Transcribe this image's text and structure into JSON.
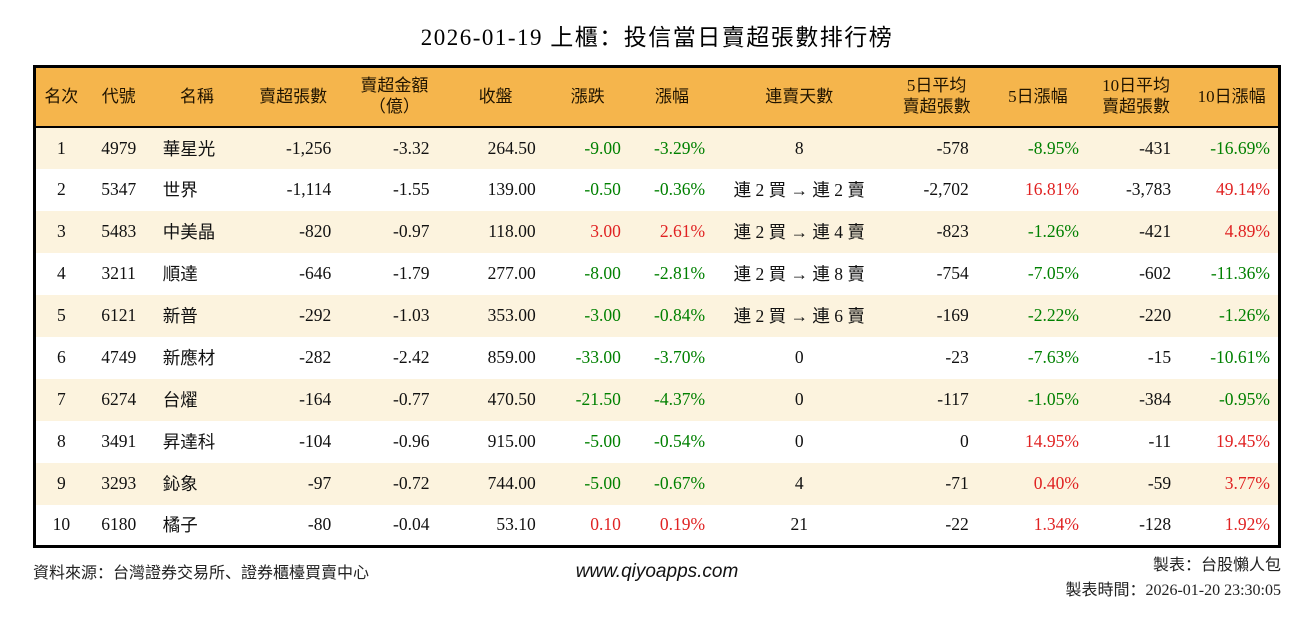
{
  "title": "2026-01-19 上櫃：投信當日賣超張數排行榜",
  "colors": {
    "header_bg": "#F5B54C",
    "row_alt_bg": "#FCF3DE",
    "row_bg": "#FFFFFF",
    "positive_red": "#E02222",
    "negative_green": "#008000",
    "border": "#000000",
    "text": "#111111"
  },
  "table": {
    "columns": [
      "名次",
      "代號",
      "名稱",
      "賣超張數",
      "賣超金額\n（億）",
      "收盤",
      "漲跌",
      "漲幅",
      "連賣天數",
      "5日平均\n賣超張數",
      "5日漲幅",
      "10日平均\n賣超張數",
      "10日漲幅"
    ],
    "rows": [
      [
        {
          "t": "1"
        },
        {
          "t": "4979"
        },
        {
          "t": "華星光"
        },
        {
          "t": "-1,256"
        },
        {
          "t": "-3.32"
        },
        {
          "t": "264.50"
        },
        {
          "t": "-9.00",
          "c": "dn"
        },
        {
          "t": "-3.29%",
          "c": "dn"
        },
        {
          "t": "8"
        },
        {
          "t": "-578"
        },
        {
          "t": "-8.95%",
          "c": "dn"
        },
        {
          "t": "-431"
        },
        {
          "t": "-16.69%",
          "c": "dn"
        }
      ],
      [
        {
          "t": "2"
        },
        {
          "t": "5347"
        },
        {
          "t": "世界"
        },
        {
          "t": "-1,114"
        },
        {
          "t": "-1.55"
        },
        {
          "t": "139.00"
        },
        {
          "t": "-0.50",
          "c": "dn"
        },
        {
          "t": "-0.36%",
          "c": "dn"
        },
        {
          "t": "連 2 買 → 連 2 賣"
        },
        {
          "t": "-2,702"
        },
        {
          "t": "16.81%",
          "c": "up"
        },
        {
          "t": "-3,783"
        },
        {
          "t": "49.14%",
          "c": "up"
        }
      ],
      [
        {
          "t": "3"
        },
        {
          "t": "5483"
        },
        {
          "t": "中美晶"
        },
        {
          "t": "-820"
        },
        {
          "t": "-0.97"
        },
        {
          "t": "118.00"
        },
        {
          "t": "3.00",
          "c": "up"
        },
        {
          "t": "2.61%",
          "c": "up"
        },
        {
          "t": "連 2 買 → 連 4 賣"
        },
        {
          "t": "-823"
        },
        {
          "t": "-1.26%",
          "c": "dn"
        },
        {
          "t": "-421"
        },
        {
          "t": "4.89%",
          "c": "up"
        }
      ],
      [
        {
          "t": "4"
        },
        {
          "t": "3211"
        },
        {
          "t": "順達"
        },
        {
          "t": "-646"
        },
        {
          "t": "-1.79"
        },
        {
          "t": "277.00"
        },
        {
          "t": "-8.00",
          "c": "dn"
        },
        {
          "t": "-2.81%",
          "c": "dn"
        },
        {
          "t": "連 2 買 → 連 8 賣"
        },
        {
          "t": "-754"
        },
        {
          "t": "-7.05%",
          "c": "dn"
        },
        {
          "t": "-602"
        },
        {
          "t": "-11.36%",
          "c": "dn"
        }
      ],
      [
        {
          "t": "5"
        },
        {
          "t": "6121"
        },
        {
          "t": "新普"
        },
        {
          "t": "-292"
        },
        {
          "t": "-1.03"
        },
        {
          "t": "353.00"
        },
        {
          "t": "-3.00",
          "c": "dn"
        },
        {
          "t": "-0.84%",
          "c": "dn"
        },
        {
          "t": "連 2 買 → 連 6 賣"
        },
        {
          "t": "-169"
        },
        {
          "t": "-2.22%",
          "c": "dn"
        },
        {
          "t": "-220"
        },
        {
          "t": "-1.26%",
          "c": "dn"
        }
      ],
      [
        {
          "t": "6"
        },
        {
          "t": "4749"
        },
        {
          "t": "新應材"
        },
        {
          "t": "-282"
        },
        {
          "t": "-2.42"
        },
        {
          "t": "859.00"
        },
        {
          "t": "-33.00",
          "c": "dn"
        },
        {
          "t": "-3.70%",
          "c": "dn"
        },
        {
          "t": "0"
        },
        {
          "t": "-23"
        },
        {
          "t": "-7.63%",
          "c": "dn"
        },
        {
          "t": "-15"
        },
        {
          "t": "-10.61%",
          "c": "dn"
        }
      ],
      [
        {
          "t": "7"
        },
        {
          "t": "6274"
        },
        {
          "t": "台燿"
        },
        {
          "t": "-164"
        },
        {
          "t": "-0.77"
        },
        {
          "t": "470.50"
        },
        {
          "t": "-21.50",
          "c": "dn"
        },
        {
          "t": "-4.37%",
          "c": "dn"
        },
        {
          "t": "0"
        },
        {
          "t": "-117"
        },
        {
          "t": "-1.05%",
          "c": "dn"
        },
        {
          "t": "-384"
        },
        {
          "t": "-0.95%",
          "c": "dn"
        }
      ],
      [
        {
          "t": "8"
        },
        {
          "t": "3491"
        },
        {
          "t": "昇達科"
        },
        {
          "t": "-104"
        },
        {
          "t": "-0.96"
        },
        {
          "t": "915.00"
        },
        {
          "t": "-5.00",
          "c": "dn"
        },
        {
          "t": "-0.54%",
          "c": "dn"
        },
        {
          "t": "0"
        },
        {
          "t": "0"
        },
        {
          "t": "14.95%",
          "c": "up"
        },
        {
          "t": "-11"
        },
        {
          "t": "19.45%",
          "c": "up"
        }
      ],
      [
        {
          "t": "9"
        },
        {
          "t": "3293"
        },
        {
          "t": "鈊象"
        },
        {
          "t": "-97"
        },
        {
          "t": "-0.72"
        },
        {
          "t": "744.00"
        },
        {
          "t": "-5.00",
          "c": "dn"
        },
        {
          "t": "-0.67%",
          "c": "dn"
        },
        {
          "t": "4"
        },
        {
          "t": "-71"
        },
        {
          "t": "0.40%",
          "c": "up"
        },
        {
          "t": "-59"
        },
        {
          "t": "3.77%",
          "c": "up"
        }
      ],
      [
        {
          "t": "10"
        },
        {
          "t": "6180"
        },
        {
          "t": "橘子"
        },
        {
          "t": "-80"
        },
        {
          "t": "-0.04"
        },
        {
          "t": "53.10"
        },
        {
          "t": "0.10",
          "c": "up"
        },
        {
          "t": "0.19%",
          "c": "up"
        },
        {
          "t": "21"
        },
        {
          "t": "-22"
        },
        {
          "t": "1.34%",
          "c": "up"
        },
        {
          "t": "-128"
        },
        {
          "t": "1.92%",
          "c": "up"
        }
      ]
    ]
  },
  "footer": {
    "source": "資料來源：台灣證券交易所、證券櫃檯買賣中心",
    "website": "www.qiyoapps.com",
    "maker": "製表：台股懶人包",
    "made_time": "製表時間：2026-01-20 23:30:05"
  }
}
